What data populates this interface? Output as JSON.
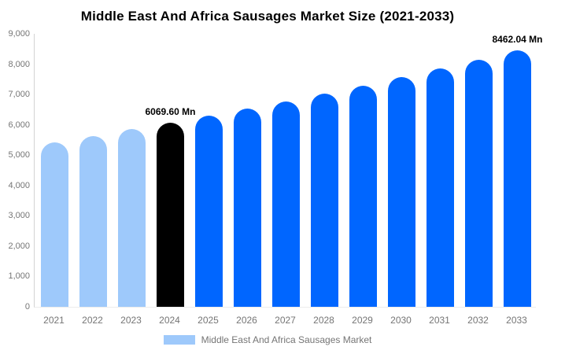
{
  "title": "Middle East And Africa Sausages Market Size (2021-2033)",
  "legend": {
    "label": "Middle East And Africa Sausages Market",
    "swatch_color": "#9EC9FB"
  },
  "colors": {
    "historical": "#9EC9FB",
    "base_year": "#000000",
    "forecast": "#0066FF",
    "axis_line": "#D3D3D3",
    "tick_text": "#757575",
    "title_text": "#000000"
  },
  "chart_data": {
    "type": "bar",
    "title": "Middle East And Africa Sausages Market Size (2021-2033)",
    "xlabel": "",
    "ylabel": "",
    "unit": "Mn",
    "ylim": [
      0,
      9000
    ],
    "grid": false,
    "legend_position": "bottom",
    "yticks": [
      {
        "value": 0,
        "label": "0"
      },
      {
        "value": 1000,
        "label": "1,000"
      },
      {
        "value": 2000,
        "label": "2,000"
      },
      {
        "value": 3000,
        "label": "3,000"
      },
      {
        "value": 4000,
        "label": "4,000"
      },
      {
        "value": 5000,
        "label": "5,000"
      },
      {
        "value": 6000,
        "label": "6,000"
      },
      {
        "value": 7000,
        "label": "7,000"
      },
      {
        "value": 8000,
        "label": "8,000"
      },
      {
        "value": 9000,
        "label": "9,000"
      }
    ],
    "categories": [
      "2021",
      "2022",
      "2023",
      "2024",
      "2025",
      "2026",
      "2027",
      "2028",
      "2029",
      "2030",
      "2031",
      "2032",
      "2033"
    ],
    "points": [
      {
        "year": "2021",
        "value": 5433,
        "color": "#9EC9FB",
        "label": ""
      },
      {
        "year": "2022",
        "value": 5638,
        "color": "#9EC9FB",
        "label": ""
      },
      {
        "year": "2023",
        "value": 5850,
        "color": "#9EC9FB",
        "label": ""
      },
      {
        "year": "2024",
        "value": 6069.6,
        "color": "#000000",
        "label": "6069.60 Mn"
      },
      {
        "year": "2025",
        "value": 6298,
        "color": "#0066FF",
        "label": ""
      },
      {
        "year": "2026",
        "value": 6535,
        "color": "#0066FF",
        "label": ""
      },
      {
        "year": "2027",
        "value": 6780,
        "color": "#0066FF",
        "label": ""
      },
      {
        "year": "2028",
        "value": 7035,
        "color": "#0066FF",
        "label": ""
      },
      {
        "year": "2029",
        "value": 7300,
        "color": "#0066FF",
        "label": ""
      },
      {
        "year": "2030",
        "value": 7574,
        "color": "#0066FF",
        "label": ""
      },
      {
        "year": "2031",
        "value": 7859,
        "color": "#0066FF",
        "label": ""
      },
      {
        "year": "2032",
        "value": 8155,
        "color": "#0066FF",
        "label": ""
      },
      {
        "year": "2033",
        "value": 8462.04,
        "color": "#0066FF",
        "label": "8462.04 Mn"
      }
    ]
  }
}
